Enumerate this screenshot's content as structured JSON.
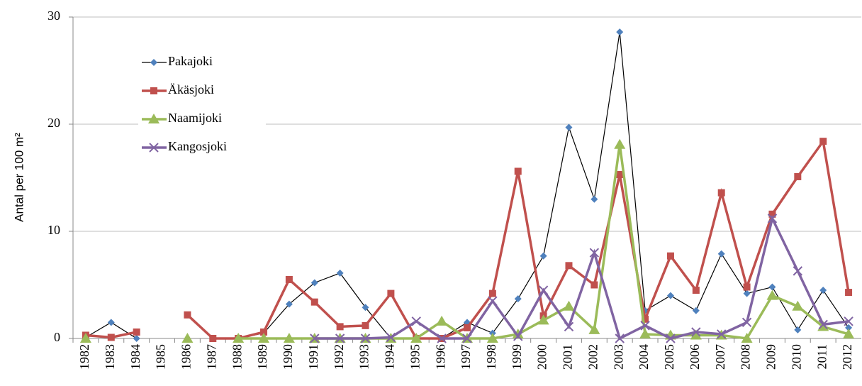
{
  "chart_data": {
    "type": "line",
    "y_label": "Antal per 100 m²",
    "categories": [
      "1982",
      "1983",
      "1984",
      "1985",
      "1986",
      "1987",
      "1988",
      "1989",
      "1990",
      "1991",
      "1992",
      "1993",
      "1994",
      "1995",
      "1996",
      "1997",
      "1998",
      "1999",
      "2000",
      "2001",
      "2002",
      "2003",
      "2004",
      "2005",
      "2006",
      "2007",
      "2008",
      "2009",
      "2010",
      "2011",
      "2012"
    ],
    "series": [
      {
        "name": "Pakajoki",
        "color": "#4f81bd",
        "line_color": "#000000",
        "marker": "diamond",
        "values": [
          0.1,
          1.5,
          0,
          null,
          null,
          null,
          0,
          0.5,
          3.2,
          5.2,
          6.1,
          2.9,
          0,
          0,
          0,
          1.5,
          0.5,
          3.7,
          7.7,
          19.7,
          13.0,
          28.6,
          2.6,
          4.0,
          2.6,
          7.9,
          4.2,
          4.8,
          0.8,
          4.5,
          1.0
        ]
      },
      {
        "name": "Äkäsjoki",
        "color": "#c0504d",
        "line_color": "#c0504d",
        "marker": "square",
        "values": [
          0.3,
          0.1,
          0.6,
          null,
          2.2,
          0,
          0,
          0.6,
          5.5,
          3.4,
          1.1,
          1.2,
          4.2,
          0,
          0,
          1.0,
          4.2,
          15.6,
          2.1,
          6.8,
          5.0,
          15.3,
          1.8,
          7.7,
          4.5,
          13.6,
          4.8,
          11.6,
          15.1,
          18.4,
          4.3
        ]
      },
      {
        "name": "Naamijoki",
        "color": "#9bbb59",
        "line_color": "#9bbb59",
        "marker": "triangle",
        "values": [
          0,
          null,
          null,
          null,
          0,
          null,
          0,
          0,
          0,
          0,
          0,
          0,
          0,
          0,
          1.6,
          0,
          0,
          0.4,
          1.7,
          3.0,
          0.8,
          18.1,
          0.4,
          0.3,
          0.3,
          0.3,
          0,
          4.0,
          3.0,
          1.1,
          0.4
        ]
      },
      {
        "name": "Kangosjoki",
        "color": "#8064a2",
        "line_color": "#8064a2",
        "marker": "x",
        "values": [
          null,
          null,
          null,
          null,
          null,
          null,
          null,
          null,
          null,
          0,
          0,
          0,
          0.1,
          1.6,
          0,
          0,
          3.5,
          0.2,
          4.5,
          1.1,
          8.0,
          0,
          1.2,
          0,
          0.6,
          0.4,
          1.5,
          11.2,
          6.3,
          1.3,
          1.6
        ]
      }
    ],
    "ylim": [
      0,
      30
    ],
    "yticks": [
      0,
      10,
      20,
      30
    ],
    "grid": true,
    "legend": "upper-left"
  }
}
